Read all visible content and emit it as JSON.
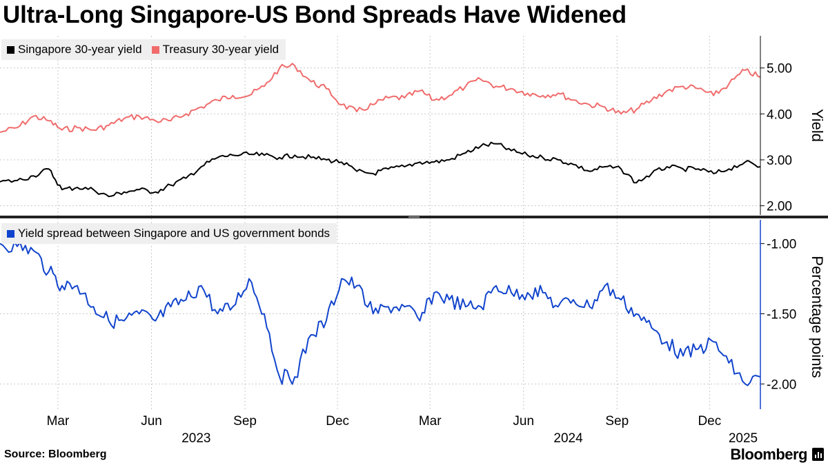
{
  "title": "Ultra-Long Singapore-US Bond Spreads Have Widened",
  "source": "Source: Bloomberg",
  "brand": "Bloomberg",
  "colors": {
    "singapore": "#000000",
    "treasury": "#f06b6b",
    "spread": "#1144cc",
    "grid": "#c8c8c8"
  },
  "chart_data": [
    {
      "type": "line",
      "legend": [
        "Singapore 30-year yield",
        "Treasury 30-year yield"
      ],
      "ylabel": "Yield",
      "ylim": [
        1.8,
        5.7
      ],
      "yticks": [
        "2.00",
        "3.00",
        "4.00",
        "5.00"
      ],
      "ytick_values": [
        2.0,
        3.0,
        4.0,
        5.0
      ],
      "x_start": "2023-01-03",
      "x_end": "2025-01-20",
      "xticks": [
        "Mar",
        "Jun",
        "Sep",
        "Dec",
        "Mar",
        "Jun",
        "Sep",
        "Dec"
      ],
      "xtick_dates": [
        "2023-03-01",
        "2023-06-01",
        "2023-09-01",
        "2023-12-01",
        "2024-03-01",
        "2024-06-01",
        "2024-09-01",
        "2024-12-01"
      ],
      "year_labels": [
        "2023",
        "2024",
        "2025"
      ],
      "year_dates": [
        "2023-07-15",
        "2024-07-15",
        "2025-01-03"
      ],
      "series": [
        {
          "name": "Singapore 30-year yield",
          "dates": [
            "2023-01-03",
            "2023-01-20",
            "2023-02-05",
            "2023-02-20",
            "2023-03-05",
            "2023-03-20",
            "2023-04-05",
            "2023-04-20",
            "2023-05-05",
            "2023-05-20",
            "2023-06-05",
            "2023-06-20",
            "2023-07-05",
            "2023-07-20",
            "2023-08-05",
            "2023-08-20",
            "2023-09-05",
            "2023-09-20",
            "2023-10-05",
            "2023-10-20",
            "2023-11-05",
            "2023-11-20",
            "2023-12-05",
            "2023-12-20",
            "2024-01-05",
            "2024-01-20",
            "2024-02-05",
            "2024-02-20",
            "2024-03-05",
            "2024-03-20",
            "2024-04-05",
            "2024-04-20",
            "2024-05-05",
            "2024-05-20",
            "2024-06-05",
            "2024-06-20",
            "2024-07-05",
            "2024-07-20",
            "2024-08-05",
            "2024-08-20",
            "2024-09-05",
            "2024-09-20",
            "2024-10-05",
            "2024-10-20",
            "2024-11-05",
            "2024-11-20",
            "2024-12-05",
            "2024-12-20",
            "2025-01-05",
            "2025-01-20"
          ],
          "values": [
            2.52,
            2.55,
            2.65,
            2.8,
            2.35,
            2.4,
            2.35,
            2.2,
            2.3,
            2.35,
            2.3,
            2.45,
            2.6,
            2.85,
            3.05,
            3.1,
            3.12,
            3.1,
            3.05,
            3.1,
            3.05,
            3.0,
            2.95,
            2.75,
            2.7,
            2.8,
            2.85,
            2.95,
            2.95,
            3.0,
            3.15,
            3.3,
            3.35,
            3.2,
            3.1,
            3.05,
            3.0,
            2.9,
            2.75,
            2.85,
            2.8,
            2.5,
            2.7,
            2.85,
            2.8,
            2.8,
            2.7,
            2.8,
            2.95,
            2.85
          ]
        },
        {
          "name": "Treasury 30-year yield",
          "dates": [
            "2023-01-03",
            "2023-01-20",
            "2023-02-05",
            "2023-02-20",
            "2023-03-05",
            "2023-03-20",
            "2023-04-05",
            "2023-04-20",
            "2023-05-05",
            "2023-05-20",
            "2023-06-05",
            "2023-06-20",
            "2023-07-05",
            "2023-07-20",
            "2023-08-05",
            "2023-08-20",
            "2023-09-05",
            "2023-09-20",
            "2023-10-05",
            "2023-10-20",
            "2023-11-05",
            "2023-11-20",
            "2023-12-05",
            "2023-12-20",
            "2024-01-05",
            "2024-01-20",
            "2024-02-05",
            "2024-02-20",
            "2024-03-05",
            "2024-03-20",
            "2024-04-05",
            "2024-04-20",
            "2024-05-05",
            "2024-05-20",
            "2024-06-05",
            "2024-06-20",
            "2024-07-05",
            "2024-07-20",
            "2024-08-05",
            "2024-08-20",
            "2024-09-05",
            "2024-09-20",
            "2024-10-05",
            "2024-10-20",
            "2024-11-05",
            "2024-11-20",
            "2024-12-05",
            "2024-12-20",
            "2025-01-05",
            "2025-01-20"
          ],
          "values": [
            3.6,
            3.7,
            3.95,
            3.85,
            3.65,
            3.7,
            3.65,
            3.75,
            3.9,
            3.95,
            3.85,
            3.85,
            4.0,
            4.15,
            4.3,
            4.4,
            4.4,
            4.6,
            5.0,
            5.05,
            4.7,
            4.55,
            4.2,
            4.05,
            4.2,
            4.35,
            4.35,
            4.5,
            4.3,
            4.4,
            4.6,
            4.75,
            4.6,
            4.55,
            4.45,
            4.4,
            4.45,
            4.3,
            4.2,
            4.15,
            4.0,
            4.1,
            4.3,
            4.5,
            4.6,
            4.55,
            4.4,
            4.65,
            4.95,
            4.8
          ]
        }
      ]
    },
    {
      "type": "line",
      "legend": [
        "Yield spread between Singapore and US government bonds"
      ],
      "ylabel": "Percentage points",
      "ylim": [
        -2.18,
        -0.83
      ],
      "yticks": [
        "-1.00",
        "-1.50",
        "-2.00"
      ],
      "ytick_values": [
        -1.0,
        -1.5,
        -2.0
      ],
      "x_start": "2023-01-03",
      "x_end": "2025-01-20",
      "series": [
        {
          "name": "Yield spread between Singapore and US government bonds",
          "dates": [
            "2023-01-03",
            "2023-01-20",
            "2023-02-05",
            "2023-02-20",
            "2023-03-05",
            "2023-03-20",
            "2023-04-05",
            "2023-04-20",
            "2023-05-05",
            "2023-05-20",
            "2023-06-05",
            "2023-06-20",
            "2023-07-05",
            "2023-07-20",
            "2023-08-05",
            "2023-08-20",
            "2023-09-05",
            "2023-09-20",
            "2023-10-05",
            "2023-10-20",
            "2023-11-05",
            "2023-11-20",
            "2023-12-05",
            "2023-12-20",
            "2024-01-05",
            "2024-01-20",
            "2024-02-05",
            "2024-02-20",
            "2024-03-05",
            "2024-03-20",
            "2024-04-05",
            "2024-04-20",
            "2024-05-05",
            "2024-05-20",
            "2024-06-05",
            "2024-06-20",
            "2024-07-05",
            "2024-07-20",
            "2024-08-05",
            "2024-08-20",
            "2024-09-05",
            "2024-09-20",
            "2024-10-05",
            "2024-10-20",
            "2024-11-05",
            "2024-11-20",
            "2024-12-05",
            "2024-12-20",
            "2025-01-05",
            "2025-01-20"
          ],
          "values": [
            -1.0,
            -1.02,
            -1.05,
            -1.2,
            -1.3,
            -1.3,
            -1.45,
            -1.55,
            -1.55,
            -1.5,
            -1.55,
            -1.45,
            -1.4,
            -1.3,
            -1.5,
            -1.45,
            -1.25,
            -1.5,
            -1.95,
            -1.95,
            -1.65,
            -1.55,
            -1.25,
            -1.3,
            -1.5,
            -1.45,
            -1.45,
            -1.55,
            -1.35,
            -1.4,
            -1.45,
            -1.45,
            -1.3,
            -1.35,
            -1.35,
            -1.35,
            -1.45,
            -1.4,
            -1.45,
            -1.3,
            -1.4,
            -1.5,
            -1.6,
            -1.7,
            -1.8,
            -1.75,
            -1.7,
            -1.85,
            -2.0,
            -1.95
          ]
        }
      ]
    }
  ]
}
